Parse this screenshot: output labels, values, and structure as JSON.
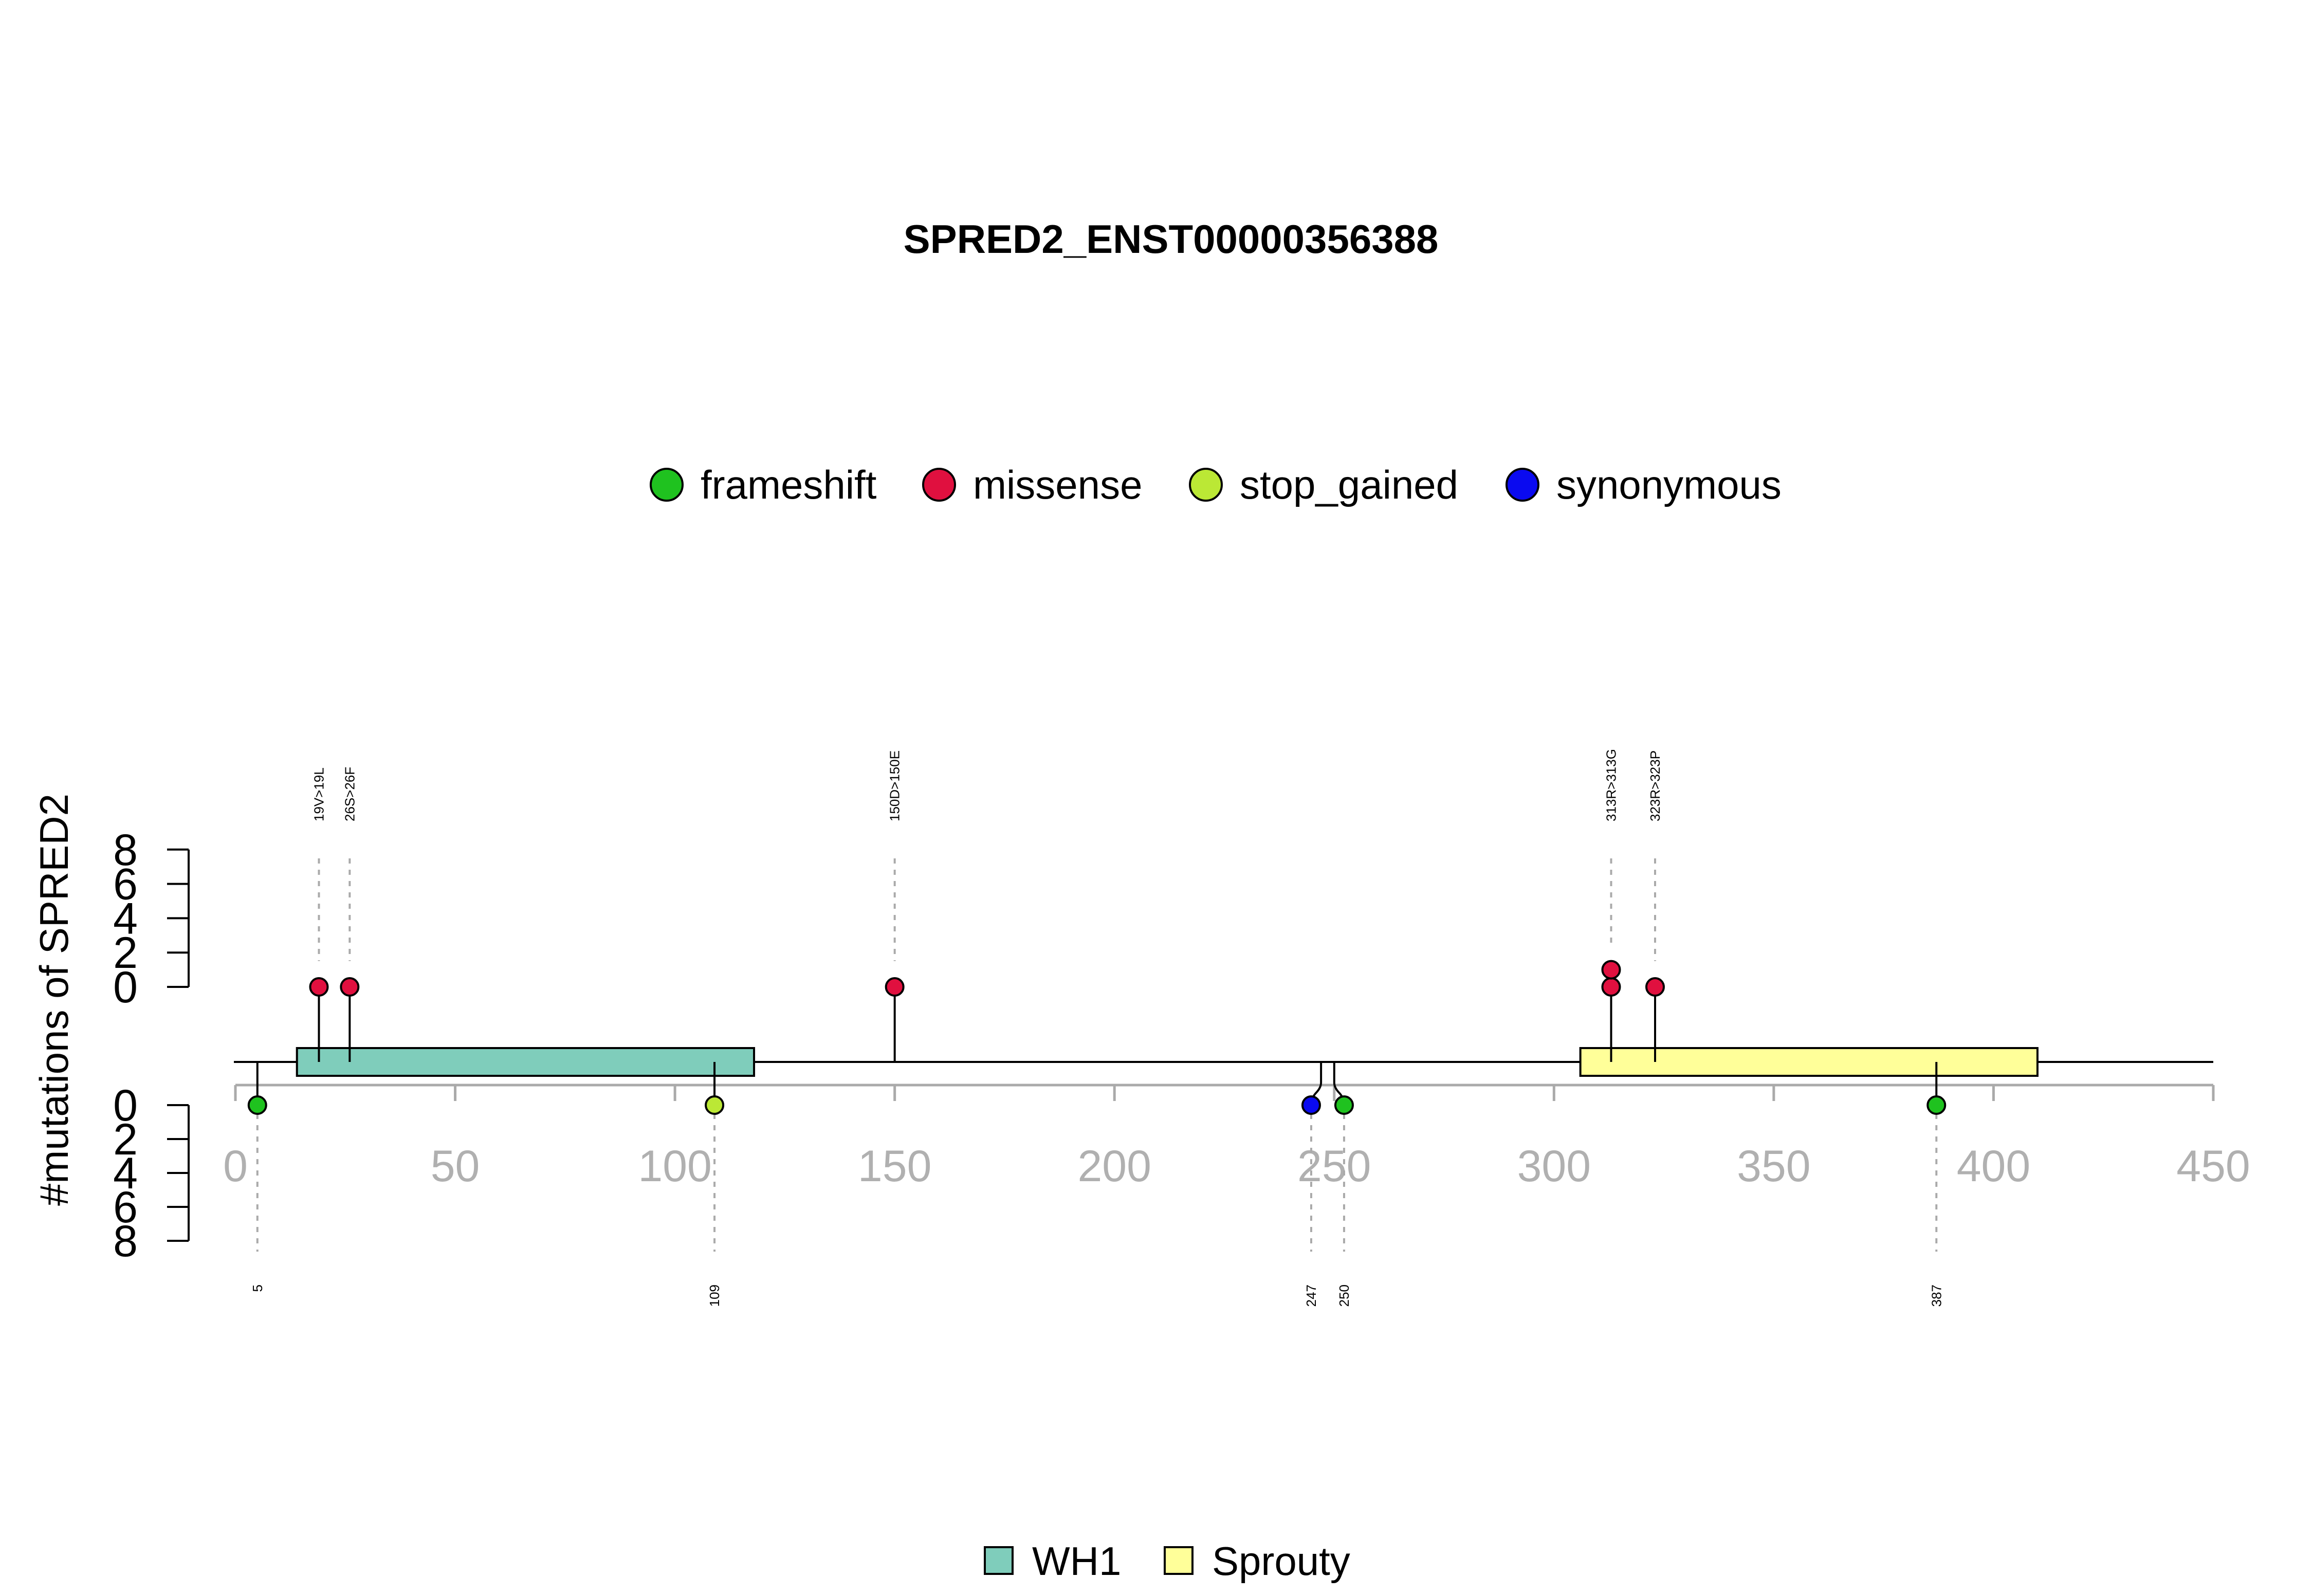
{
  "chart_data": {
    "type": "lollipop",
    "title": "SPRED2_ENST00000356388",
    "ylabel": "#mutations of SPRED2",
    "xlim": [
      0,
      450
    ],
    "x_ticks": [
      0,
      50,
      100,
      150,
      200,
      250,
      300,
      350,
      400,
      450
    ],
    "y_ticks_top": [
      0,
      2,
      4,
      6,
      8
    ],
    "y_ticks_bottom": [
      0,
      2,
      4,
      6,
      8
    ],
    "protein_length": 450,
    "legend": [
      {
        "name": "frameshift",
        "color": "#1fc21f"
      },
      {
        "name": "missense",
        "color": "#e0103f"
      },
      {
        "name": "stop_gained",
        "color": "#bbe835"
      },
      {
        "name": "synonymous",
        "color": "#0a0af0"
      }
    ],
    "domains": [
      {
        "name": "WH1",
        "start": 14,
        "end": 118,
        "color": "#7fcdbb"
      },
      {
        "name": "Sprouty",
        "start": 306,
        "end": 410,
        "color": "#ffff99"
      }
    ],
    "mutations_top": [
      {
        "position": 19,
        "label": "19V>19L",
        "type": "missense",
        "count": 1
      },
      {
        "position": 26,
        "label": "26S>26F",
        "type": "missense",
        "count": 1
      },
      {
        "position": 150,
        "label": "150D>150E",
        "type": "missense",
        "count": 1
      },
      {
        "position": 313,
        "label": "313R>313G",
        "type": "missense",
        "count": 2
      },
      {
        "position": 323,
        "label": "323R>323P",
        "type": "missense",
        "count": 1
      }
    ],
    "mutations_bottom": [
      {
        "position": 5,
        "label": "5",
        "type": "frameshift",
        "count": 1
      },
      {
        "position": 109,
        "label": "109",
        "type": "stop_gained",
        "count": 1
      },
      {
        "position": 247,
        "label": "247",
        "type": "synonymous",
        "count": 1
      },
      {
        "position": 250,
        "label": "250",
        "type": "frameshift",
        "count": 1
      },
      {
        "position": 387,
        "label": "387",
        "type": "frameshift",
        "count": 1
      }
    ]
  }
}
